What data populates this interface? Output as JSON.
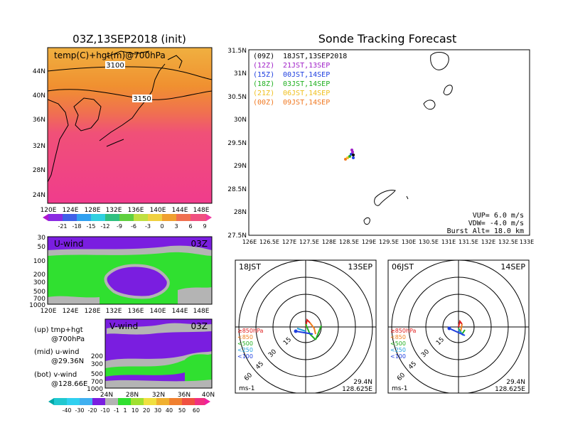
{
  "left": {
    "title": "03Z,13SEP2018 (init)",
    "map": {
      "label": "temp(C)+hgt(m)@700hPa",
      "contours": [
        "3100",
        "3150"
      ],
      "yticks": [
        "44N",
        "40N",
        "36N",
        "32N",
        "28N",
        "24N"
      ],
      "xticks": [
        "120E",
        "124E",
        "128E",
        "132E",
        "136E",
        "140E",
        "144E",
        "148E"
      ],
      "colorbar": [
        "-21",
        "-18",
        "-15",
        "-12",
        "-9",
        "-6",
        "-3",
        "0",
        "3",
        "6",
        "9"
      ]
    },
    "uwind": {
      "label": "U-wind",
      "time": "03Z",
      "yticks": [
        "30",
        "50",
        "100",
        "200",
        "300",
        "500",
        "700",
        "1000"
      ],
      "xticks": [
        "120E",
        "124E",
        "128E",
        "132E",
        "136E",
        "140E",
        "144E",
        "148E"
      ]
    },
    "vwind": {
      "label": "V-wind",
      "time": "03Z",
      "yticks": [
        "200",
        "300",
        "500",
        "700",
        "1000"
      ],
      "xticks": [
        "24N",
        "28N",
        "32N",
        "36N",
        "40N"
      ],
      "colorbar": [
        "-40",
        "-30",
        "-20",
        "-10",
        "-1",
        "1",
        "10",
        "20",
        "30",
        "40",
        "50",
        "60"
      ]
    },
    "legend": {
      "up1": "(up) tmp+hgt",
      "up2": "@700hPa",
      "mid1": "(mid) u-wind",
      "mid2": "@29.36N",
      "bot1": "(bot) v-wind",
      "bot2": "@128.66E"
    }
  },
  "forecast": {
    "title": "Sonde Tracking Forecast",
    "times": [
      {
        "z": "(09Z)",
        "text": "18JST,13SEP2018",
        "color": "#000000"
      },
      {
        "z": "(12Z)",
        "text": "21JST,13SEP",
        "color": "#a020c8"
      },
      {
        "z": "(15Z)",
        "text": "00JST,14SEP",
        "color": "#2040e0"
      },
      {
        "z": "(18Z)",
        "text": "03JST,14SEP",
        "color": "#20b020"
      },
      {
        "z": "(21Z)",
        "text": "06JST,14SEP",
        "color": "#f0c020"
      },
      {
        "z": "(00Z)",
        "text": "09JST,14SEP",
        "color": "#f07820"
      }
    ],
    "yticks": [
      "31.5N",
      "31N",
      "30.5N",
      "30N",
      "29.5N",
      "29N",
      "28.5N",
      "28N",
      "27.5N"
    ],
    "xticks": [
      "126E",
      "126.5E",
      "127E",
      "127.5E",
      "128E",
      "128.5E",
      "129E",
      "129.5E",
      "130E",
      "130.5E",
      "131E",
      "131.5E",
      "132E",
      "132.5E",
      "133E"
    ],
    "params": [
      "VUP= 6.0 m/s",
      "VDW= -4.0 m/s",
      "Burst Alt= 18.0 km"
    ]
  },
  "hodo1": {
    "time": "18JST",
    "date": "13SEP",
    "rings": [
      "15",
      "30",
      "45",
      "60"
    ],
    "levels": [
      "≥850hPa",
      "<850",
      "<500",
      "<250",
      "<100"
    ],
    "lat": "29.4N",
    "lon": "128.625E",
    "unit": "ms-1"
  },
  "hodo2": {
    "time": "06JST",
    "date": "14SEP",
    "rings": [
      "15",
      "30",
      "45",
      "60"
    ],
    "levels": [
      "≥850hPa",
      "<850",
      "<500",
      "<250",
      "<100"
    ],
    "lat": "29.4N",
    "lon": "128.625E",
    "unit": "ms-1"
  },
  "colors": {
    "level_colors": [
      "#e02020",
      "#f08020",
      "#20b020",
      "#20a0e0",
      "#2040e0"
    ],
    "uwind_fill": "#7a1ee0",
    "green_fill": "#30e030",
    "gray_fill": "#b4b4b4"
  }
}
